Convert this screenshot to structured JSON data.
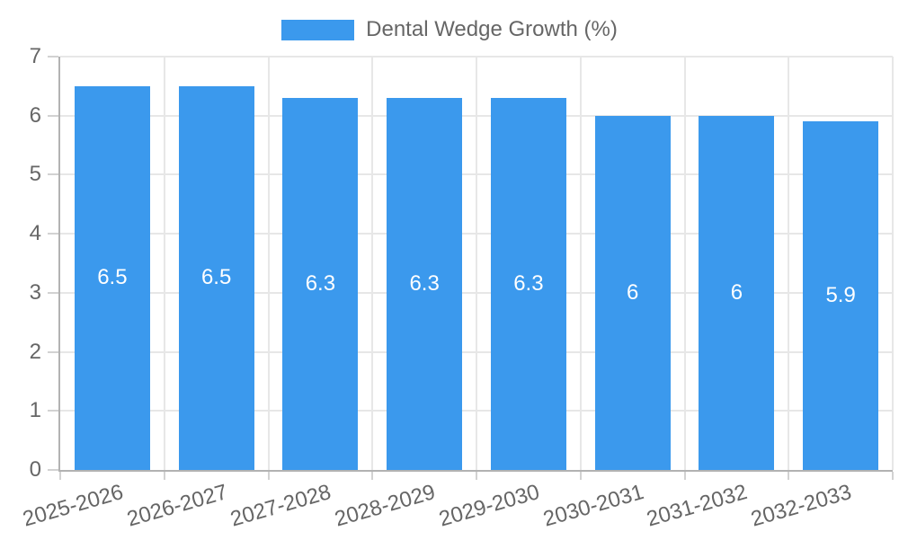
{
  "chart_data": {
    "type": "bar",
    "title": "Dental Wedge Growth (%)",
    "legend": {
      "position": "top",
      "entries": [
        "Dental Wedge Growth (%)"
      ]
    },
    "categories": [
      "2025-2026",
      "2026-2027",
      "2027-2028",
      "2028-2029",
      "2029-2030",
      "2030-2031",
      "2031-2032",
      "2032-2033"
    ],
    "series": [
      {
        "name": "Dental Wedge Growth (%)",
        "values": [
          6.5,
          6.5,
          6.3,
          6.3,
          6.3,
          6,
          6,
          5.9
        ]
      }
    ],
    "value_labels": [
      "6.5",
      "6.5",
      "6.3",
      "6.3",
      "6.3",
      "6",
      "6",
      "5.9"
    ],
    "xlabel": "",
    "ylabel": "",
    "ylim": [
      0,
      7
    ],
    "yticks": [
      0,
      1,
      2,
      3,
      4,
      5,
      6,
      7
    ],
    "grid": true,
    "x_tick_rotation_deg": -16
  },
  "colors": {
    "bar": "#3b99ed",
    "bar_label": "#ffffff",
    "grid_line": "#e7e7e7",
    "axis_line": "#b2b2b2",
    "tick_mark": "#d2d2d2",
    "axis_text": "#666666",
    "background": "#ffffff"
  }
}
